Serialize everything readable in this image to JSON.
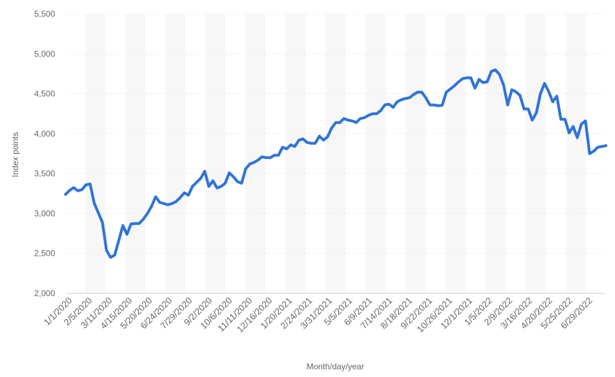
{
  "chart_data": {
    "type": "line",
    "xlabel": "Month/day/year",
    "ylabel": "Index points",
    "ylim": [
      2000,
      5500
    ],
    "yticks": [
      2000,
      2500,
      3000,
      3500,
      4000,
      4500,
      5000,
      5500
    ],
    "ytick_labels": [
      "2,000",
      "2,500",
      "3,000",
      "3,500",
      "4,000",
      "4,500",
      "5,000",
      "5,500"
    ],
    "grid": true,
    "xtick_labels": [
      "1/1/2020",
      "2/5/2020",
      "3/11/2020",
      "4/15/2020",
      "5/20/2020",
      "6/24/2020",
      "7/29/2020",
      "9/2/2020",
      "10/6/2020",
      "11/11/2020",
      "12/16/2020",
      "1/20/2021",
      "2/24/2021",
      "3/31/2021",
      "5/5/2021",
      "6/9/2021",
      "7/14/2021",
      "8/18/2021",
      "9/22/2021",
      "10/26/2021",
      "12/1/2021",
      "1/5/2022",
      "2/9/2022",
      "3/16/2022",
      "4/20/2022",
      "5/25/2022",
      "6/29/2022"
    ],
    "series": [
      {
        "color": "#2f74d8",
        "values": [
          3240,
          3290,
          3325,
          3285,
          3300,
          3360,
          3370,
          3130,
          3010,
          2890,
          2540,
          2450,
          2480,
          2660,
          2850,
          2740,
          2870,
          2875,
          2875,
          2930,
          3000,
          3090,
          3210,
          3140,
          3125,
          3110,
          3125,
          3150,
          3200,
          3260,
          3230,
          3340,
          3390,
          3440,
          3530,
          3340,
          3410,
          3320,
          3340,
          3380,
          3510,
          3460,
          3400,
          3380,
          3560,
          3620,
          3640,
          3670,
          3710,
          3700,
          3700,
          3730,
          3730,
          3830,
          3810,
          3860,
          3840,
          3920,
          3935,
          3890,
          3880,
          3880,
          3970,
          3920,
          3960,
          4070,
          4140,
          4140,
          4190,
          4170,
          4160,
          4140,
          4190,
          4200,
          4230,
          4250,
          4250,
          4290,
          4360,
          4370,
          4330,
          4400,
          4425,
          4440,
          4450,
          4490,
          4520,
          4520,
          4450,
          4360,
          4360,
          4350,
          4355,
          4520,
          4560,
          4600,
          4650,
          4690,
          4700,
          4700,
          4570,
          4680,
          4640,
          4650,
          4780,
          4800,
          4740,
          4610,
          4360,
          4550,
          4525,
          4480,
          4310,
          4310,
          4170,
          4260,
          4500,
          4630,
          4530,
          4400,
          4470,
          4180,
          4180,
          4010,
          4090,
          3950,
          4120,
          4160,
          3750,
          3780,
          3830,
          3840,
          3850
        ]
      }
    ]
  }
}
